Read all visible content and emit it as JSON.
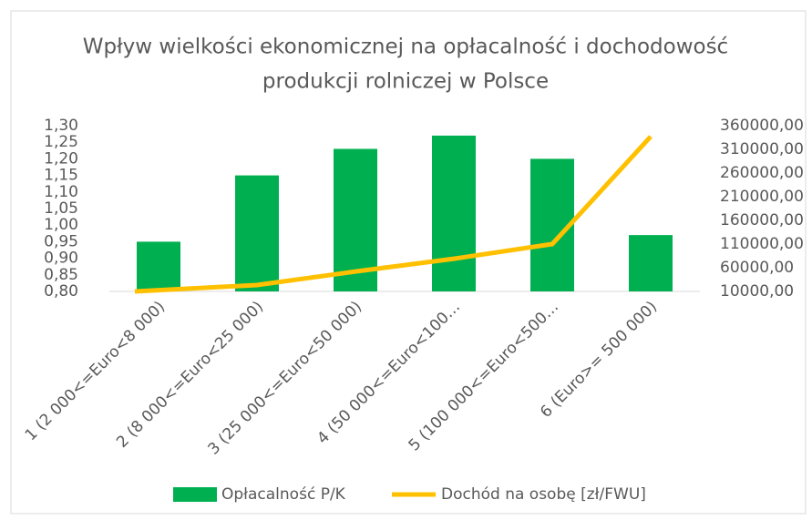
{
  "chart_data": {
    "type": "bar+line",
    "title": [
      "Wpływ wielkości ekonomicznej na opłacalność i dochodowość",
      "produkcji rolniczej w Polsce"
    ],
    "categories": [
      "1 (2 000<=Euro<8 000)",
      "2 (8 000<=Euro<25 000)",
      "3 (25 000<=Euro<50 000)",
      "4 (50 000<=Euro<100…",
      "5 (100 000<=Euro<500…",
      "6 (Euro>= 500 000)"
    ],
    "series": [
      {
        "name": "Opłacalność P/K",
        "color": "#00b050",
        "kind": "bar",
        "values": [
          0.95,
          1.15,
          1.23,
          1.27,
          1.2,
          0.97
        ]
      },
      {
        "name": "Dochód na osobę [zł/FWU]",
        "color": "#ffc000",
        "kind": "line",
        "axis": "y2",
        "values": [
          10000,
          23500,
          52000,
          79000,
          110000,
          337000
        ]
      }
    ],
    "ylim": [
      0.8,
      1.3
    ],
    "yticks": [
      {
        "value": 0.8,
        "label": "0,80"
      },
      {
        "value": 0.85,
        "label": "0,85"
      },
      {
        "value": 0.9,
        "label": "0,90"
      },
      {
        "value": 0.95,
        "label": "0,95"
      },
      {
        "value": 1.0,
        "label": "1,00"
      },
      {
        "value": 1.05,
        "label": "1,05"
      },
      {
        "value": 1.1,
        "label": "1,10"
      },
      {
        "value": 1.15,
        "label": "1,15"
      },
      {
        "value": 1.2,
        "label": "1,20"
      },
      {
        "value": 1.25,
        "label": "1,25"
      },
      {
        "value": 1.3,
        "label": "1,30"
      }
    ],
    "y2lim": [
      10000,
      360000
    ],
    "y2ticks": [
      {
        "value": 10000,
        "label": "10000,00"
      },
      {
        "value": 60000,
        "label": "60000,00"
      },
      {
        "value": 110000,
        "label": "110000,00"
      },
      {
        "value": 160000,
        "label": "160000,00"
      },
      {
        "value": 210000,
        "label": "210000,00"
      },
      {
        "value": 260000,
        "label": "260000,00"
      },
      {
        "value": 310000,
        "label": "310000,00"
      },
      {
        "value": 360000,
        "label": "360000,00"
      }
    ],
    "legend": "bottom"
  }
}
